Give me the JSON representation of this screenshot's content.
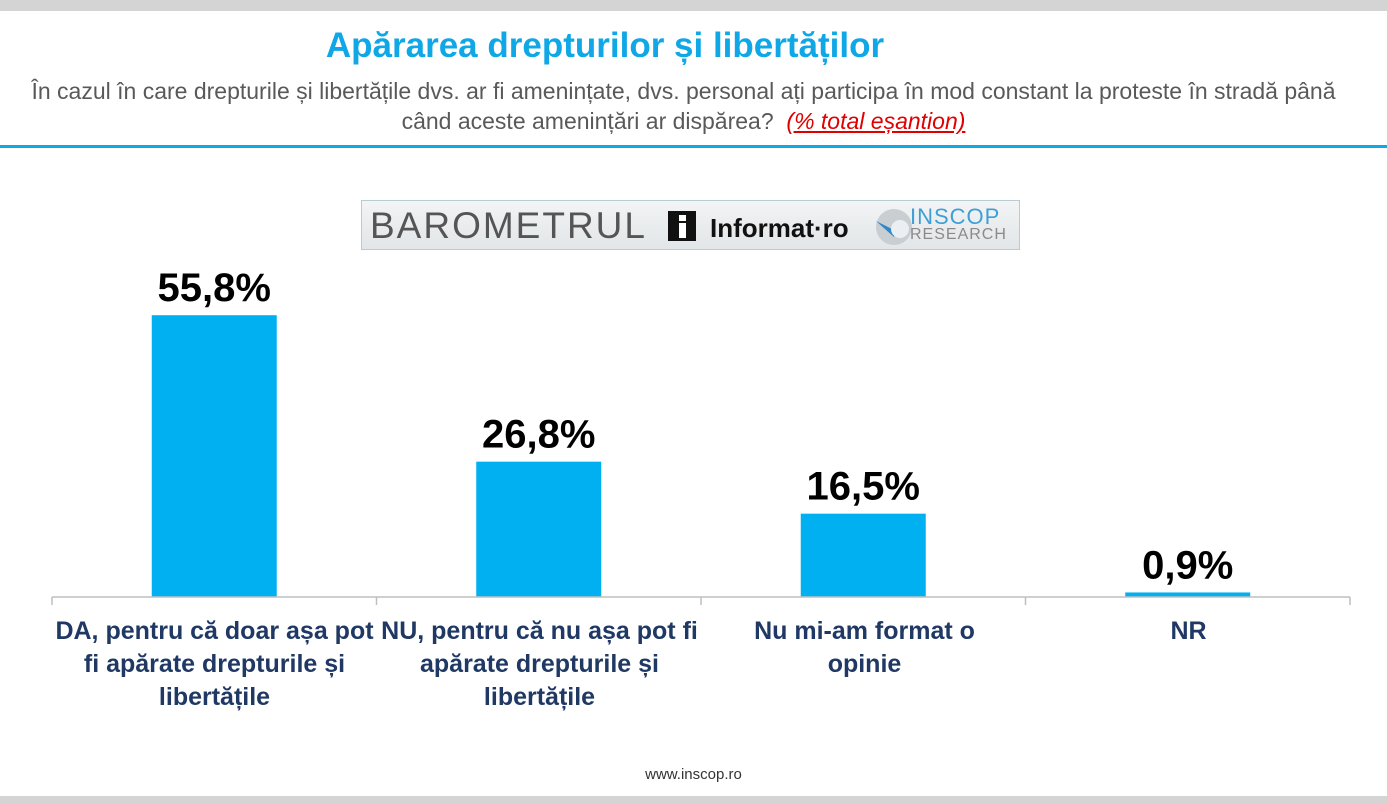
{
  "header": {
    "title": "Apărarea drepturilor și libertăților",
    "question": "În cazul în care drepturile și libertățile dvs. ar fi amenințate, dvs. personal ați participa în mod constant la proteste în stradă până când aceste amenințări ar dispărea?",
    "note": "(% total eșantion)"
  },
  "logo": {
    "barometrul": "BAROMETRUL",
    "informat": "Informat·ro",
    "inscop": "INSCOP",
    "research": "RESEARCH"
  },
  "chart_data": {
    "type": "bar",
    "categories": [
      "DA, pentru că doar așa pot fi apărate drepturile și libertățile",
      "NU, pentru că nu așa pot fi apărate drepturile și libertățile",
      "Nu mi-am format o opinie",
      "NR"
    ],
    "values": [
      55.8,
      26.8,
      16.5,
      0.9
    ],
    "data_labels": [
      "55,8%",
      "26,8%",
      "16,5%",
      "0,9%"
    ],
    "ylim": [
      0,
      60
    ],
    "grid": false,
    "bar_color": "#00b0f0"
  },
  "footer": {
    "url": "www.inscop.ro"
  },
  "colors": {
    "accent": "#10a7e6",
    "category_text": "#1f3864",
    "note": "#e00000"
  }
}
